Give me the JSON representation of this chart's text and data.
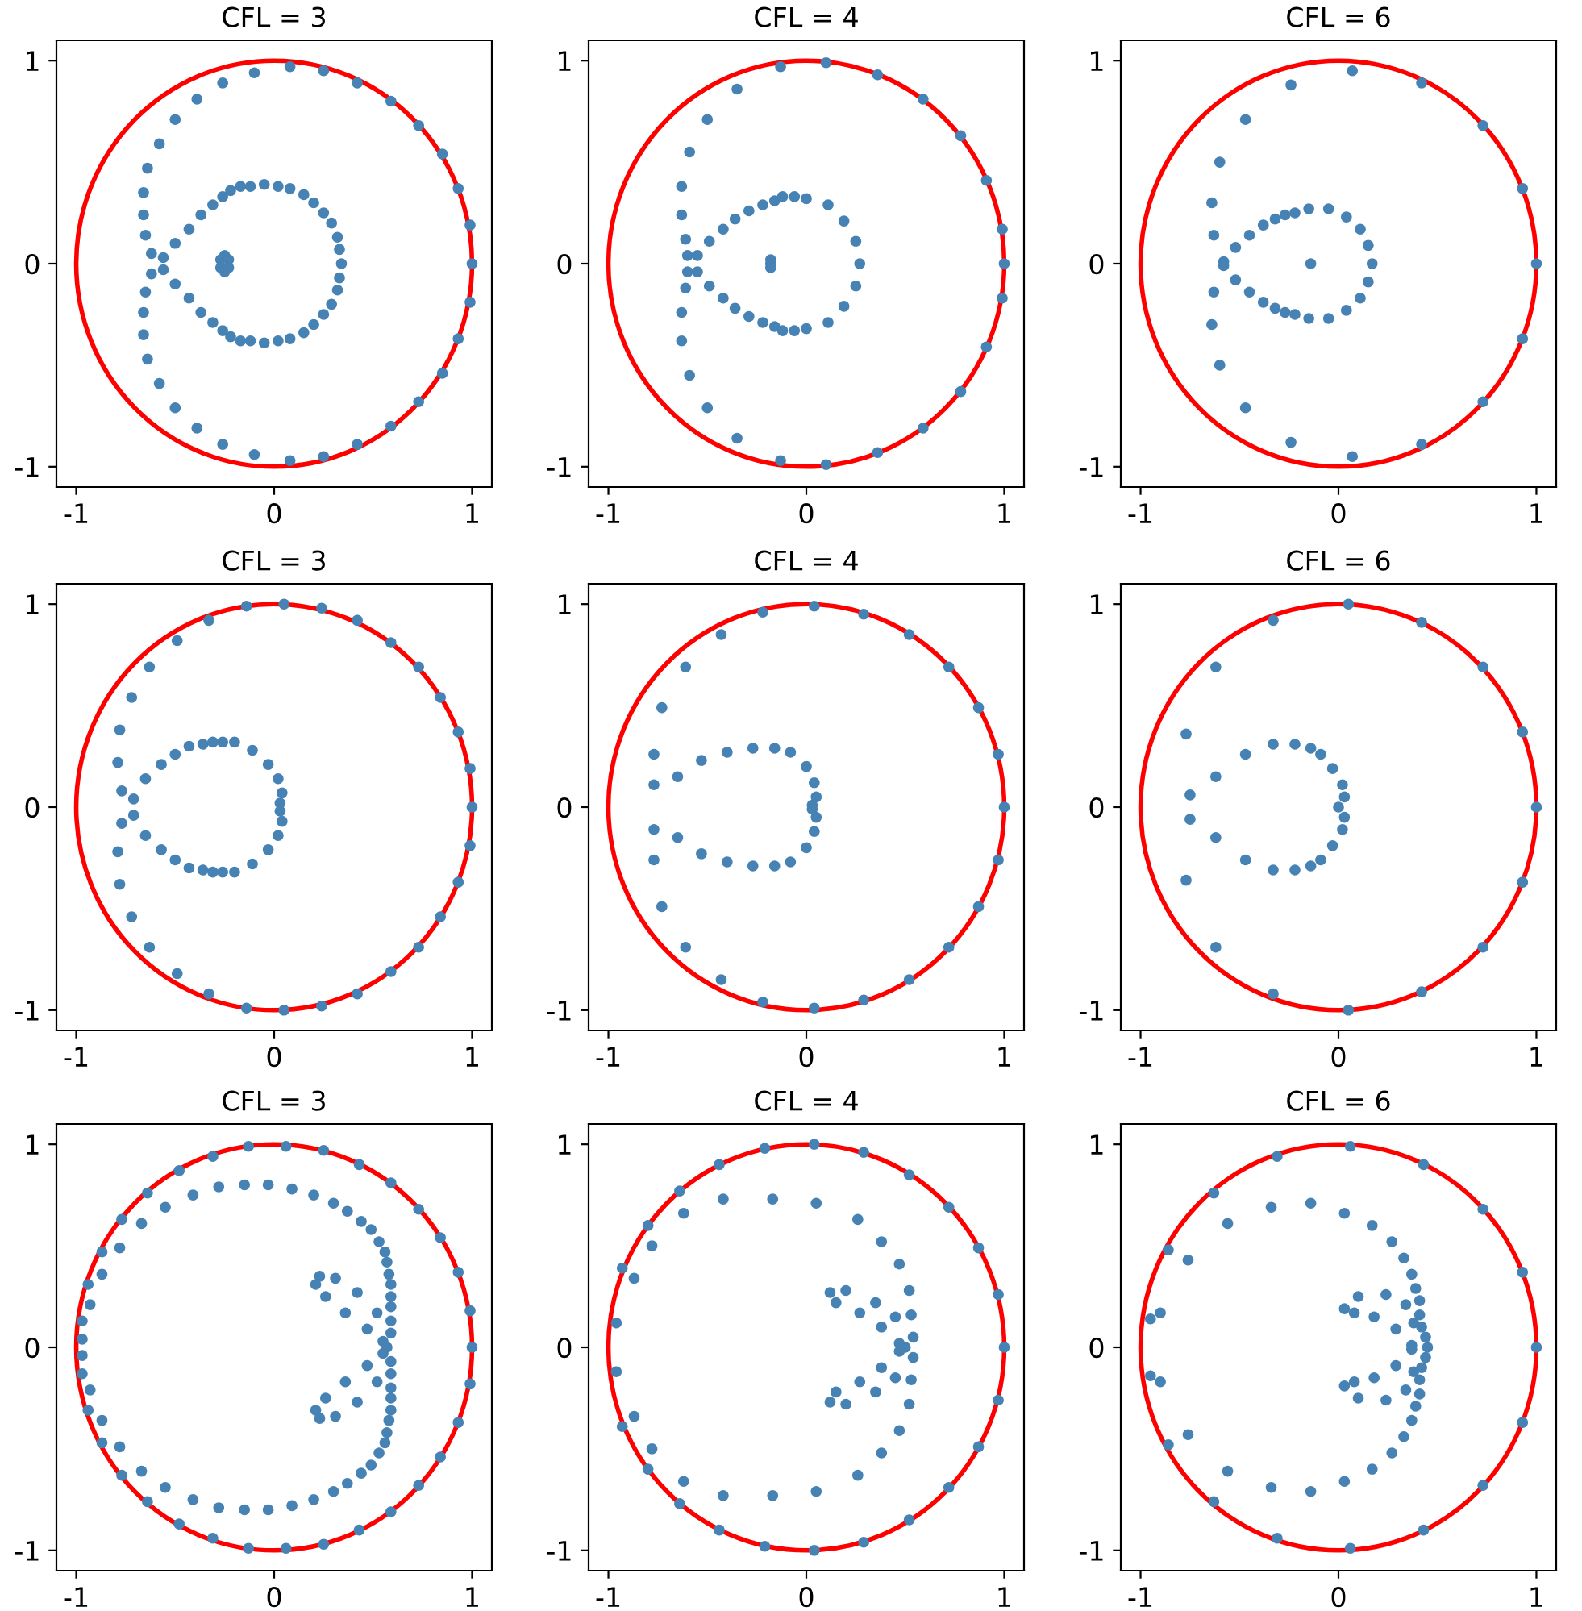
{
  "chart_data": [
    {
      "type": "scatter",
      "title": "CFL = 3",
      "xlim": [
        -1.1,
        1.1
      ],
      "ylim": [
        -1.1,
        1.1
      ],
      "xticks": [
        -1,
        0,
        1
      ],
      "yticks": [
        -1,
        0,
        1
      ],
      "grid": false,
      "series": [
        {
          "marker": "circle",
          "color": "#4682b4",
          "x": [
            0.08,
            0.25,
            0.42,
            0.59,
            0.73,
            0.85,
            0.93,
            0.99,
            -0.1,
            -0.26,
            -0.39,
            -0.5,
            -0.58,
            -0.64,
            -0.66,
            -0.66,
            -0.65,
            -0.62,
            -0.56,
            -0.5,
            -0.43,
            -0.37,
            -0.31,
            -0.26,
            -0.22,
            -0.17,
            -0.12,
            -0.05,
            0.02,
            0.08,
            0.15,
            0.2,
            0.25,
            0.29,
            0.32,
            0.33,
            -0.25,
            -0.23,
            -0.27,
            1,
            0.34,
            0.08,
            0.25,
            0.42,
            0.59,
            0.73,
            0.85,
            0.93,
            0.99,
            -0.1,
            -0.26,
            -0.39,
            -0.5,
            -0.58,
            -0.64,
            -0.66,
            -0.66,
            -0.65,
            -0.62,
            -0.56,
            -0.5,
            -0.43,
            -0.37,
            -0.31,
            -0.26,
            -0.22,
            -0.17,
            -0.12,
            -0.05,
            0.02,
            0.08,
            0.15,
            0.2,
            0.25,
            0.29,
            0.32,
            0.33,
            -0.25,
            -0.23,
            -0.27
          ],
          "values": [
            0.97,
            0.95,
            0.89,
            0.8,
            0.68,
            0.54,
            0.37,
            0.19,
            0.94,
            0.89,
            0.81,
            0.71,
            0.59,
            0.47,
            0.35,
            0.24,
            0.14,
            0.05,
            0.03,
            0.1,
            0.17,
            0.24,
            0.29,
            0.33,
            0.36,
            0.38,
            0.38,
            0.39,
            0.38,
            0.37,
            0.34,
            0.3,
            0.25,
            0.2,
            0.13,
            0.07,
            0.04,
            0.02,
            0.02,
            0,
            0,
            -0.97,
            -0.95,
            -0.89,
            -0.8,
            -0.68,
            -0.54,
            -0.37,
            -0.19,
            -0.94,
            -0.89,
            -0.81,
            -0.71,
            -0.59,
            -0.47,
            -0.35,
            -0.24,
            -0.14,
            -0.05,
            -0.03,
            -0.1,
            -0.17,
            -0.24,
            -0.29,
            -0.33,
            -0.36,
            -0.38,
            -0.38,
            -0.39,
            -0.38,
            -0.37,
            -0.34,
            -0.3,
            -0.25,
            -0.2,
            -0.13,
            -0.07,
            -0.04,
            -0.02,
            -0.02
          ]
        }
      ]
    },
    {
      "type": "scatter",
      "title": "CFL = 4",
      "xlim": [
        -1.1,
        1.1
      ],
      "ylim": [
        -1.1,
        1.1
      ],
      "xticks": [
        -1,
        0,
        1
      ],
      "yticks": [
        -1,
        0,
        1
      ],
      "grid": false,
      "series": [
        {
          "marker": "circle",
          "color": "#4682b4",
          "x": [
            0.1,
            0.36,
            0.59,
            0.78,
            0.91,
            0.99,
            -0.13,
            -0.35,
            -0.5,
            -0.59,
            -0.63,
            -0.63,
            -0.61,
            -0.6,
            -0.55,
            -0.49,
            -0.42,
            -0.36,
            -0.29,
            -0.22,
            -0.16,
            -0.12,
            -0.06,
            0,
            0.11,
            0.19,
            0.25,
            -0.18,
            1,
            0.27,
            -0.18,
            0.1,
            0.36,
            0.59,
            0.78,
            0.91,
            0.99,
            -0.13,
            -0.35,
            -0.5,
            -0.59,
            -0.63,
            -0.63,
            -0.61,
            -0.6,
            -0.55,
            -0.49,
            -0.42,
            -0.36,
            -0.29,
            -0.22,
            -0.16,
            -0.12,
            -0.06,
            0,
            0.11,
            0.19,
            0.25,
            -0.18
          ],
          "values": [
            0.99,
            0.93,
            0.81,
            0.63,
            0.41,
            0.17,
            0.97,
            0.86,
            0.71,
            0.55,
            0.38,
            0.24,
            0.12,
            0.04,
            0.04,
            0.11,
            0.17,
            0.22,
            0.26,
            0.29,
            0.31,
            0.33,
            0.33,
            0.32,
            0.29,
            0.21,
            0.11,
            0.02,
            0,
            0,
            0,
            -0.99,
            -0.93,
            -0.81,
            -0.63,
            -0.41,
            -0.17,
            -0.97,
            -0.86,
            -0.71,
            -0.55,
            -0.38,
            -0.24,
            -0.12,
            -0.04,
            -0.04,
            -0.11,
            -0.17,
            -0.22,
            -0.26,
            -0.29,
            -0.31,
            -0.33,
            -0.33,
            -0.32,
            -0.29,
            -0.21,
            -0.11,
            -0.02
          ]
        }
      ]
    },
    {
      "type": "scatter",
      "title": "CFL = 6",
      "xlim": [
        -1.1,
        1.1
      ],
      "ylim": [
        -1.1,
        1.1
      ],
      "xticks": [
        -1,
        0,
        1
      ],
      "yticks": [
        -1,
        0,
        1
      ],
      "grid": false,
      "series": [
        {
          "marker": "circle",
          "color": "#4682b4",
          "x": [
            0.07,
            0.42,
            0.73,
            0.93,
            -0.24,
            -0.47,
            -0.6,
            -0.64,
            -0.63,
            -0.58,
            -0.52,
            -0.45,
            -0.38,
            -0.32,
            -0.27,
            -0.22,
            -0.15,
            -0.05,
            0.04,
            0.11,
            0.15,
            1,
            0.17,
            -0.14,
            0.07,
            0.42,
            0.73,
            0.93,
            -0.24,
            -0.47,
            -0.6,
            -0.64,
            -0.63,
            -0.58,
            -0.52,
            -0.45,
            -0.38,
            -0.32,
            -0.27,
            -0.22,
            -0.15,
            -0.05,
            0.04,
            0.11,
            0.15
          ],
          "values": [
            0.95,
            0.89,
            0.68,
            0.37,
            0.88,
            0.71,
            0.5,
            0.3,
            0.14,
            0.01,
            0.08,
            0.14,
            0.19,
            0.22,
            0.24,
            0.25,
            0.27,
            0.27,
            0.23,
            0.17,
            0.09,
            0,
            0,
            0,
            -0.95,
            -0.89,
            -0.68,
            -0.37,
            -0.88,
            -0.71,
            -0.5,
            -0.3,
            -0.14,
            -0.01,
            -0.08,
            -0.14,
            -0.19,
            -0.22,
            -0.24,
            -0.25,
            -0.27,
            -0.27,
            -0.23,
            -0.17,
            -0.09
          ]
        }
      ]
    },
    {
      "type": "scatter",
      "title": "CFL = 3",
      "xlim": [
        -1.1,
        1.1
      ],
      "ylim": [
        -1.1,
        1.1
      ],
      "xticks": [
        -1,
        0,
        1
      ],
      "yticks": [
        -1,
        0,
        1
      ],
      "grid": false,
      "series": [
        {
          "marker": "circle",
          "color": "#4682b4",
          "x": [
            -0.14,
            0.05,
            0.24,
            0.42,
            0.59,
            0.73,
            0.84,
            0.93,
            0.99,
            -0.33,
            -0.49,
            -0.63,
            -0.72,
            -0.78,
            -0.79,
            -0.77,
            -0.71,
            -0.65,
            -0.57,
            -0.5,
            -0.43,
            -0.36,
            -0.31,
            -0.26,
            -0.2,
            -0.11,
            -0.03,
            0.02,
            0.04,
            0.03,
            1,
            -0.14,
            0.05,
            0.24,
            0.42,
            0.59,
            0.73,
            0.84,
            0.93,
            0.99,
            -0.33,
            -0.49,
            -0.63,
            -0.72,
            -0.78,
            -0.79,
            -0.77,
            -0.71,
            -0.65,
            -0.57,
            -0.5,
            -0.43,
            -0.36,
            -0.31,
            -0.26,
            -0.2,
            -0.11,
            -0.03,
            0.02,
            0.04,
            0.03
          ],
          "values": [
            0.99,
            1,
            0.98,
            0.92,
            0.81,
            0.69,
            0.54,
            0.37,
            0.19,
            0.92,
            0.82,
            0.69,
            0.54,
            0.38,
            0.22,
            0.08,
            0.04,
            0.14,
            0.21,
            0.26,
            0.3,
            0.31,
            0.32,
            0.32,
            0.32,
            0.28,
            0.21,
            0.14,
            0.07,
            0.02,
            0,
            -0.99,
            -1,
            -0.98,
            -0.92,
            -0.81,
            -0.69,
            -0.54,
            -0.37,
            -0.19,
            -0.92,
            -0.82,
            -0.69,
            -0.54,
            -0.38,
            -0.22,
            -0.08,
            -0.04,
            -0.14,
            -0.21,
            -0.26,
            -0.3,
            -0.31,
            -0.32,
            -0.32,
            -0.32,
            -0.28,
            -0.21,
            -0.14,
            -0.07,
            -0.02
          ]
        }
      ]
    },
    {
      "type": "scatter",
      "title": "CFL = 4",
      "xlim": [
        -1.1,
        1.1
      ],
      "ylim": [
        -1.1,
        1.1
      ],
      "xticks": [
        -1,
        0,
        1
      ],
      "yticks": [
        -1,
        0,
        1
      ],
      "grid": false,
      "series": [
        {
          "marker": "circle",
          "color": "#4682b4",
          "x": [
            0.04,
            0.29,
            0.52,
            0.72,
            0.87,
            0.97,
            -0.22,
            -0.43,
            -0.61,
            -0.73,
            -0.77,
            -0.77,
            -0.65,
            -0.53,
            -0.4,
            -0.27,
            -0.16,
            -0.08,
            0,
            0.04,
            0.05,
            0.03,
            1,
            0.04,
            0.29,
            0.52,
            0.72,
            0.87,
            0.97,
            -0.22,
            -0.43,
            -0.61,
            -0.73,
            -0.77,
            -0.77,
            -0.65,
            -0.53,
            -0.4,
            -0.27,
            -0.16,
            -0.08,
            0,
            0.04,
            0.05,
            0.03
          ],
          "values": [
            0.99,
            0.95,
            0.85,
            0.69,
            0.49,
            0.26,
            0.96,
            0.85,
            0.69,
            0.49,
            0.26,
            0.11,
            0.15,
            0.23,
            0.27,
            0.29,
            0.29,
            0.27,
            0.2,
            0.12,
            0.05,
            0.01,
            0,
            -0.99,
            -0.95,
            -0.85,
            -0.69,
            -0.49,
            -0.26,
            -0.96,
            -0.85,
            -0.69,
            -0.49,
            -0.26,
            -0.11,
            -0.15,
            -0.23,
            -0.27,
            -0.29,
            -0.29,
            -0.27,
            -0.2,
            -0.12,
            -0.05,
            -0.01
          ]
        }
      ]
    },
    {
      "type": "scatter",
      "title": "CFL = 6",
      "xlim": [
        -1.1,
        1.1
      ],
      "ylim": [
        -1.1,
        1.1
      ],
      "xticks": [
        -1,
        0,
        1
      ],
      "yticks": [
        -1,
        0,
        1
      ],
      "grid": false,
      "series": [
        {
          "marker": "circle",
          "color": "#4682b4",
          "x": [
            0.05,
            0.42,
            0.73,
            0.93,
            -0.33,
            -0.62,
            -0.77,
            -0.75,
            -0.62,
            -0.47,
            -0.33,
            -0.22,
            -0.14,
            -0.09,
            -0.03,
            0.02,
            0.03,
            1,
            0,
            0.05,
            0.42,
            0.73,
            0.93,
            -0.33,
            -0.62,
            -0.77,
            -0.75,
            -0.62,
            -0.47,
            -0.33,
            -0.22,
            -0.14,
            -0.09,
            -0.03,
            0.02,
            0.03
          ],
          "values": [
            1,
            0.91,
            0.69,
            0.37,
            0.92,
            0.69,
            0.36,
            0.06,
            0.15,
            0.26,
            0.31,
            0.31,
            0.29,
            0.26,
            0.19,
            0.11,
            0.05,
            0,
            0,
            -1,
            -0.91,
            -0.69,
            -0.37,
            -0.92,
            -0.69,
            -0.36,
            -0.06,
            -0.15,
            -0.26,
            -0.31,
            -0.31,
            -0.29,
            -0.26,
            -0.19,
            -0.11,
            -0.05
          ]
        }
      ]
    },
    {
      "type": "scatter",
      "title": "CFL = 3",
      "xlim": [
        -1.1,
        1.1
      ],
      "ylim": [
        -1.1,
        1.1
      ],
      "xticks": [
        -1,
        0,
        1
      ],
      "yticks": [
        -1,
        0,
        1
      ],
      "grid": false,
      "series": [
        {
          "marker": "circle",
          "color": "#4682b4",
          "x": [
            -0.13,
            0.06,
            0.25,
            0.43,
            0.59,
            0.73,
            0.84,
            0.93,
            0.99,
            -0.31,
            -0.48,
            -0.64,
            -0.77,
            -0.87,
            -0.94,
            -0.97,
            -0.97,
            -0.93,
            -0.87,
            -0.78,
            -0.67,
            -0.55,
            -0.41,
            -0.28,
            -0.15,
            -0.03,
            0.09,
            0.2,
            0.3,
            0.37,
            0.44,
            0.49,
            0.53,
            0.56,
            0.57,
            0.58,
            0.59,
            0.59,
            0.59,
            0.59,
            0.59,
            0.52,
            0.42,
            0.31,
            0.23,
            0.21,
            0.26,
            0.36,
            0.47,
            0.55,
            1,
            0.57,
            -0.13,
            0.06,
            0.25,
            0.43,
            0.59,
            0.73,
            0.84,
            0.93,
            0.99,
            -0.31,
            -0.48,
            -0.64,
            -0.77,
            -0.87,
            -0.94,
            -0.97,
            -0.97,
            -0.93,
            -0.87,
            -0.78,
            -0.67,
            -0.55,
            -0.41,
            -0.28,
            -0.15,
            -0.03,
            0.09,
            0.2,
            0.3,
            0.37,
            0.44,
            0.49,
            0.53,
            0.56,
            0.57,
            0.58,
            0.59,
            0.59,
            0.59,
            0.59,
            0.59,
            0.52,
            0.42,
            0.31,
            0.23,
            0.21,
            0.26,
            0.36,
            0.47,
            0.55
          ],
          "values": [
            0.99,
            0.99,
            0.97,
            0.9,
            0.81,
            0.68,
            0.54,
            0.37,
            0.18,
            0.94,
            0.87,
            0.76,
            0.63,
            0.47,
            0.31,
            0.13,
            0.04,
            0.21,
            0.36,
            0.49,
            0.61,
            0.69,
            0.75,
            0.79,
            0.8,
            0.8,
            0.78,
            0.75,
            0.71,
            0.67,
            0.62,
            0.58,
            0.52,
            0.47,
            0.42,
            0.36,
            0.31,
            0.25,
            0.2,
            0.13,
            0.07,
            0.17,
            0.27,
            0.34,
            0.35,
            0.31,
            0.25,
            0.17,
            0.09,
            0.03,
            0,
            0,
            -0.99,
            -0.99,
            -0.97,
            -0.9,
            -0.81,
            -0.68,
            -0.54,
            -0.37,
            -0.18,
            -0.94,
            -0.87,
            -0.76,
            -0.63,
            -0.47,
            -0.31,
            -0.13,
            -0.04,
            -0.21,
            -0.36,
            -0.49,
            -0.61,
            -0.69,
            -0.75,
            -0.79,
            -0.8,
            -0.8,
            -0.78,
            -0.75,
            -0.71,
            -0.67,
            -0.62,
            -0.58,
            -0.52,
            -0.47,
            -0.42,
            -0.36,
            -0.31,
            -0.25,
            -0.2,
            -0.13,
            -0.07,
            -0.17,
            -0.27,
            -0.34,
            -0.35,
            -0.31,
            -0.25,
            -0.17,
            -0.09,
            -0.03
          ]
        }
      ]
    },
    {
      "type": "scatter",
      "title": "CFL = 4",
      "xlim": [
        -1.1,
        1.1
      ],
      "ylim": [
        -1.1,
        1.1
      ],
      "xticks": [
        -1,
        0,
        1
      ],
      "yticks": [
        -1,
        0,
        1
      ],
      "grid": false,
      "series": [
        {
          "marker": "circle",
          "color": "#4682b4",
          "x": [
            0.04,
            0.29,
            0.52,
            0.72,
            0.87,
            0.97,
            -0.21,
            -0.44,
            -0.64,
            -0.8,
            -0.93,
            -0.96,
            -0.87,
            -0.78,
            -0.62,
            -0.42,
            -0.17,
            0.05,
            0.26,
            0.38,
            0.47,
            0.52,
            0.53,
            0.54,
            0.45,
            0.35,
            0.2,
            0.12,
            0.15,
            0.27,
            0.38,
            0.47,
            1,
            0.5,
            0.04,
            0.29,
            0.52,
            0.72,
            0.87,
            0.97,
            -0.21,
            -0.44,
            -0.64,
            -0.8,
            -0.93,
            -0.96,
            -0.87,
            -0.78,
            -0.62,
            -0.42,
            -0.17,
            0.05,
            0.26,
            0.38,
            0.47,
            0.52,
            0.53,
            0.54,
            0.45,
            0.35,
            0.2,
            0.12,
            0.15,
            0.27,
            0.38,
            0.47
          ],
          "values": [
            1,
            0.96,
            0.85,
            0.69,
            0.49,
            0.26,
            0.98,
            0.9,
            0.77,
            0.6,
            0.39,
            0.12,
            0.34,
            0.5,
            0.66,
            0.73,
            0.73,
            0.71,
            0.63,
            0.52,
            0.41,
            0.28,
            0.16,
            0.05,
            0.15,
            0.22,
            0.28,
            0.27,
            0.22,
            0.17,
            0.1,
            0.02,
            0,
            0,
            -1,
            -0.96,
            -0.85,
            -0.69,
            -0.49,
            -0.26,
            -0.98,
            -0.9,
            -0.77,
            -0.6,
            -0.39,
            -0.12,
            -0.34,
            -0.5,
            -0.66,
            -0.73,
            -0.73,
            -0.71,
            -0.63,
            -0.52,
            -0.41,
            -0.28,
            -0.16,
            -0.05,
            -0.15,
            -0.22,
            -0.28,
            -0.27,
            -0.22,
            -0.17,
            -0.1,
            -0.02
          ]
        }
      ]
    },
    {
      "type": "scatter",
      "title": "CFL = 6",
      "xlim": [
        -1.1,
        1.1
      ],
      "ylim": [
        -1.1,
        1.1
      ],
      "xticks": [
        -1,
        0,
        1
      ],
      "yticks": [
        -1,
        0,
        1
      ],
      "grid": false,
      "series": [
        {
          "marker": "circle",
          "color": "#4682b4",
          "x": [
            0.06,
            0.43,
            0.73,
            0.93,
            -0.31,
            -0.63,
            -0.86,
            -0.95,
            -0.9,
            -0.76,
            -0.56,
            -0.34,
            -0.14,
            0.03,
            0.17,
            0.27,
            0.33,
            0.37,
            0.39,
            0.41,
            0.41,
            0.42,
            0.44,
            0.03,
            0.1,
            0.24,
            0.34,
            0.38,
            0.37,
            0.29,
            0.18,
            0.08,
            1,
            0.45,
            0.06,
            0.43,
            0.73,
            0.93,
            -0.31,
            -0.63,
            -0.86,
            -0.95,
            -0.9,
            -0.76,
            -0.56,
            -0.34,
            -0.14,
            0.03,
            0.17,
            0.27,
            0.33,
            0.37,
            0.39,
            0.41,
            0.41,
            0.42,
            0.44,
            0.03,
            0.1,
            0.24,
            0.34,
            0.38,
            0.37,
            0.29,
            0.18,
            0.08
          ],
          "values": [
            0.99,
            0.9,
            0.68,
            0.37,
            0.94,
            0.76,
            0.48,
            0.14,
            0.17,
            0.43,
            0.61,
            0.69,
            0.71,
            0.66,
            0.6,
            0.52,
            0.44,
            0.36,
            0.29,
            0.23,
            0.16,
            0.1,
            0.05,
            0.19,
            0.25,
            0.26,
            0.21,
            0.12,
            0.01,
            0.09,
            0.15,
            0.17,
            0,
            0,
            -0.99,
            -0.9,
            -0.68,
            -0.37,
            -0.94,
            -0.76,
            -0.48,
            -0.14,
            -0.17,
            -0.43,
            -0.61,
            -0.69,
            -0.71,
            -0.66,
            -0.6,
            -0.52,
            -0.44,
            -0.36,
            -0.29,
            -0.23,
            -0.16,
            -0.1,
            -0.05,
            -0.19,
            -0.25,
            -0.26,
            -0.21,
            -0.12,
            -0.01,
            -0.09,
            -0.15,
            -0.17
          ]
        }
      ]
    }
  ]
}
